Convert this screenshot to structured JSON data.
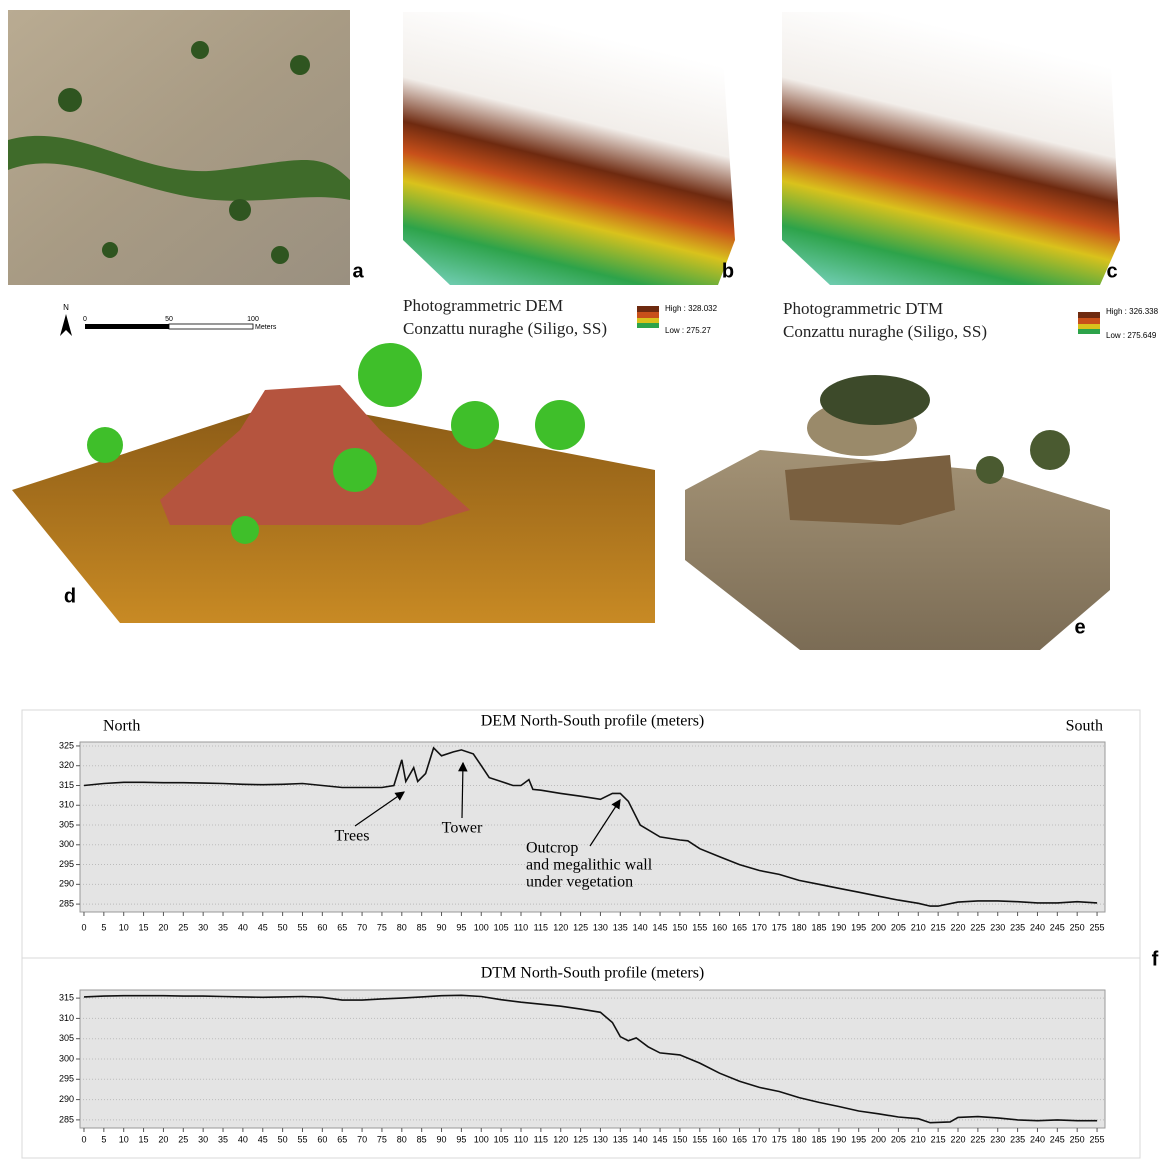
{
  "panels": {
    "labels": [
      "a",
      "b",
      "c",
      "d",
      "e",
      "f"
    ],
    "north": "N",
    "scale": [
      "0",
      "50",
      "100",
      "Meters"
    ],
    "dem_legend": {
      "title": [
        "Photogrammetric DEM",
        "Conzattu nuraghe (Siligo, SS)"
      ],
      "high": "High : 328.032",
      "low": "Low : 275.27"
    },
    "dtm_legend": {
      "title": [
        "Photogrammetric DTM",
        "Conzattu nuraghe (Siligo, SS)"
      ],
      "high": "High : 326.338",
      "low": "Low : 275.649"
    }
  },
  "chart_data": [
    {
      "type": "line",
      "title": "DEM North-South profile (meters)",
      "color": "#111111",
      "annotations": [
        "North",
        "South",
        "Trees",
        "Tower",
        "Outcrop",
        "and megalithic wall",
        "under vegetation"
      ],
      "x": [
        0,
        5,
        10,
        15,
        20,
        25,
        30,
        35,
        40,
        45,
        50,
        55,
        60,
        65,
        70,
        75,
        78,
        80,
        81,
        83,
        84,
        86,
        88,
        90,
        93,
        95,
        98,
        100,
        102,
        105,
        108,
        110,
        112,
        113,
        115,
        120,
        125,
        130,
        133,
        135,
        137,
        140,
        145,
        150,
        152,
        155,
        160,
        165,
        170,
        175,
        180,
        185,
        190,
        195,
        200,
        205,
        210,
        213,
        215,
        220,
        225,
        230,
        235,
        240,
        245,
        250,
        255
      ],
      "values": [
        315,
        315.5,
        315.8,
        315.8,
        315.7,
        315.7,
        315.6,
        315.5,
        315.3,
        315.2,
        315.3,
        315.5,
        315,
        314.5,
        314.5,
        314.5,
        315,
        321.5,
        316,
        319.5,
        316,
        318,
        324.5,
        322.5,
        323.5,
        324,
        323,
        320,
        317,
        316,
        315,
        315,
        316.5,
        314,
        313.8,
        313,
        312.3,
        311.5,
        313,
        313,
        311,
        305,
        302,
        301.2,
        301,
        299,
        297,
        295,
        293.5,
        292.5,
        291,
        290,
        289,
        288,
        287,
        286,
        285.2,
        284.5,
        284.5,
        285.5,
        285.8,
        285.8,
        285.6,
        285.3,
        285.3,
        285.6,
        285.3
      ],
      "xlim": [
        -1,
        257
      ],
      "ylim": [
        283,
        326
      ],
      "xticks": [
        0,
        5,
        10,
        15,
        20,
        25,
        30,
        35,
        40,
        45,
        50,
        55,
        60,
        65,
        70,
        75,
        80,
        85,
        90,
        95,
        100,
        105,
        110,
        115,
        120,
        125,
        130,
        135,
        140,
        145,
        150,
        155,
        160,
        165,
        170,
        175,
        180,
        185,
        190,
        195,
        200,
        205,
        210,
        215,
        220,
        225,
        230,
        235,
        240,
        245,
        250,
        255
      ],
      "yticks": [
        285,
        290,
        295,
        300,
        305,
        310,
        315,
        320,
        325
      ],
      "grid": true
    },
    {
      "type": "line",
      "title": "DTM North-South profile (meters)",
      "color": "#111111",
      "x": [
        0,
        5,
        10,
        15,
        20,
        25,
        30,
        35,
        40,
        45,
        50,
        55,
        60,
        65,
        70,
        75,
        80,
        85,
        90,
        95,
        100,
        105,
        110,
        115,
        120,
        125,
        130,
        133,
        135,
        137,
        139,
        142,
        145,
        150,
        155,
        160,
        165,
        170,
        175,
        180,
        185,
        190,
        195,
        200,
        205,
        210,
        213,
        218,
        220,
        225,
        230,
        235,
        240,
        245,
        250,
        255
      ],
      "values": [
        315.3,
        315.5,
        315.6,
        315.6,
        315.6,
        315.5,
        315.5,
        315.4,
        315.3,
        315.2,
        315.3,
        315.4,
        315.2,
        314.5,
        314.5,
        314.8,
        315,
        315.3,
        315.6,
        315.7,
        315.4,
        314.6,
        314,
        313.5,
        313,
        312.3,
        311.5,
        309,
        305.5,
        304.5,
        305.2,
        303,
        301.5,
        301,
        299,
        296.5,
        294.5,
        293,
        292,
        290.5,
        289.3,
        288.3,
        287.2,
        286.5,
        285.7,
        285.3,
        284.3,
        284.5,
        285.6,
        285.8,
        285.5,
        285,
        284.8,
        285,
        284.8,
        284.8
      ],
      "xlim": [
        -1,
        257
      ],
      "ylim": [
        283,
        317
      ],
      "xticks": [
        0,
        5,
        10,
        15,
        20,
        25,
        30,
        35,
        40,
        45,
        50,
        55,
        60,
        65,
        70,
        75,
        80,
        85,
        90,
        95,
        100,
        105,
        110,
        115,
        120,
        125,
        130,
        135,
        140,
        145,
        150,
        155,
        160,
        165,
        170,
        175,
        180,
        185,
        190,
        195,
        200,
        205,
        210,
        215,
        220,
        225,
        230,
        235,
        240,
        245,
        250,
        255
      ],
      "yticks": [
        285,
        290,
        295,
        300,
        305,
        310,
        315
      ],
      "grid": true
    }
  ]
}
